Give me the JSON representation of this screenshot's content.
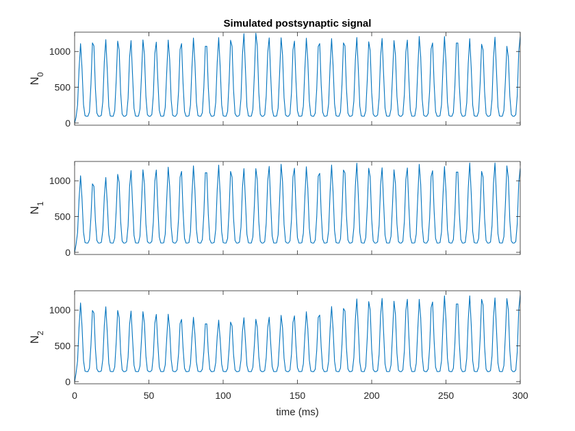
{
  "chart_data": [
    {
      "type": "line",
      "title": "Simulated postsynaptic signal",
      "ylabel_main": "N",
      "ylabel_sub": "0",
      "xlim": [
        0,
        300
      ],
      "ylim": [
        -30,
        1270
      ],
      "yticks": [
        0,
        500,
        1000
      ],
      "color": "#0072BD",
      "series": [
        {
          "period_ms": 8.45,
          "first_peak_ms": 4,
          "trough": 95,
          "peaks": [
            1110,
            1210,
            1170,
            1200,
            1170,
            1190,
            1170,
            1170,
            1180,
            1190,
            1180,
            1195,
            1230,
            1260,
            1300,
            1220,
            1210,
            1200,
            1190,
            1200,
            1180,
            1210,
            1200,
            1190,
            1200,
            1180,
            1200,
            1220,
            1190,
            1210,
            1230,
            1180,
            1170,
            1210,
            1110,
            1240,
            1210
          ]
        }
      ]
    },
    {
      "type": "line",
      "title": "",
      "ylabel_main": "N",
      "ylabel_sub": "1",
      "xlim": [
        0,
        300
      ],
      "ylim": [
        -30,
        1270
      ],
      "yticks": [
        0,
        500,
        1000
      ],
      "color": "#0072BD",
      "series": [
        {
          "period_ms": 8.45,
          "first_peak_ms": 4,
          "trough": 130,
          "peaks": [
            1070,
            1030,
            1050,
            1140,
            1160,
            1180,
            1190,
            1200,
            1200,
            1210,
            1220,
            1220,
            1200,
            1180,
            1210,
            1230,
            1250,
            1230,
            1200,
            1190,
            1220,
            1240,
            1250,
            1230,
            1200,
            1180,
            1220,
            1240,
            1210,
            1200,
            1230,
            1250,
            1200,
            1260,
            1250,
            1200,
            1260
          ]
        }
      ]
    },
    {
      "type": "line",
      "title": "",
      "ylabel_main": "N",
      "ylabel_sub": "2",
      "xlabel": "time (ms)",
      "xlim": [
        0,
        300
      ],
      "xticks": [
        0,
        50,
        100,
        150,
        200,
        250,
        300
      ],
      "ylim": [
        -30,
        1270
      ],
      "yticks": [
        0,
        500,
        1000
      ],
      "color": "#0072BD",
      "series": [
        {
          "period_ms": 8.45,
          "first_peak_ms": 4,
          "trough": 140,
          "peaks": [
            1100,
            1070,
            1050,
            1040,
            1000,
            1000,
            970,
            950,
            920,
            900,
            880,
            860,
            880,
            900,
            900,
            920,
            940,
            960,
            980,
            1000,
            1050,
            1100,
            1160,
            1170,
            1180,
            1150,
            1190,
            1160,
            1180,
            1200,
            1190,
            1200,
            1220,
            1180,
            1200,
            1240,
            1240
          ]
        }
      ]
    }
  ]
}
